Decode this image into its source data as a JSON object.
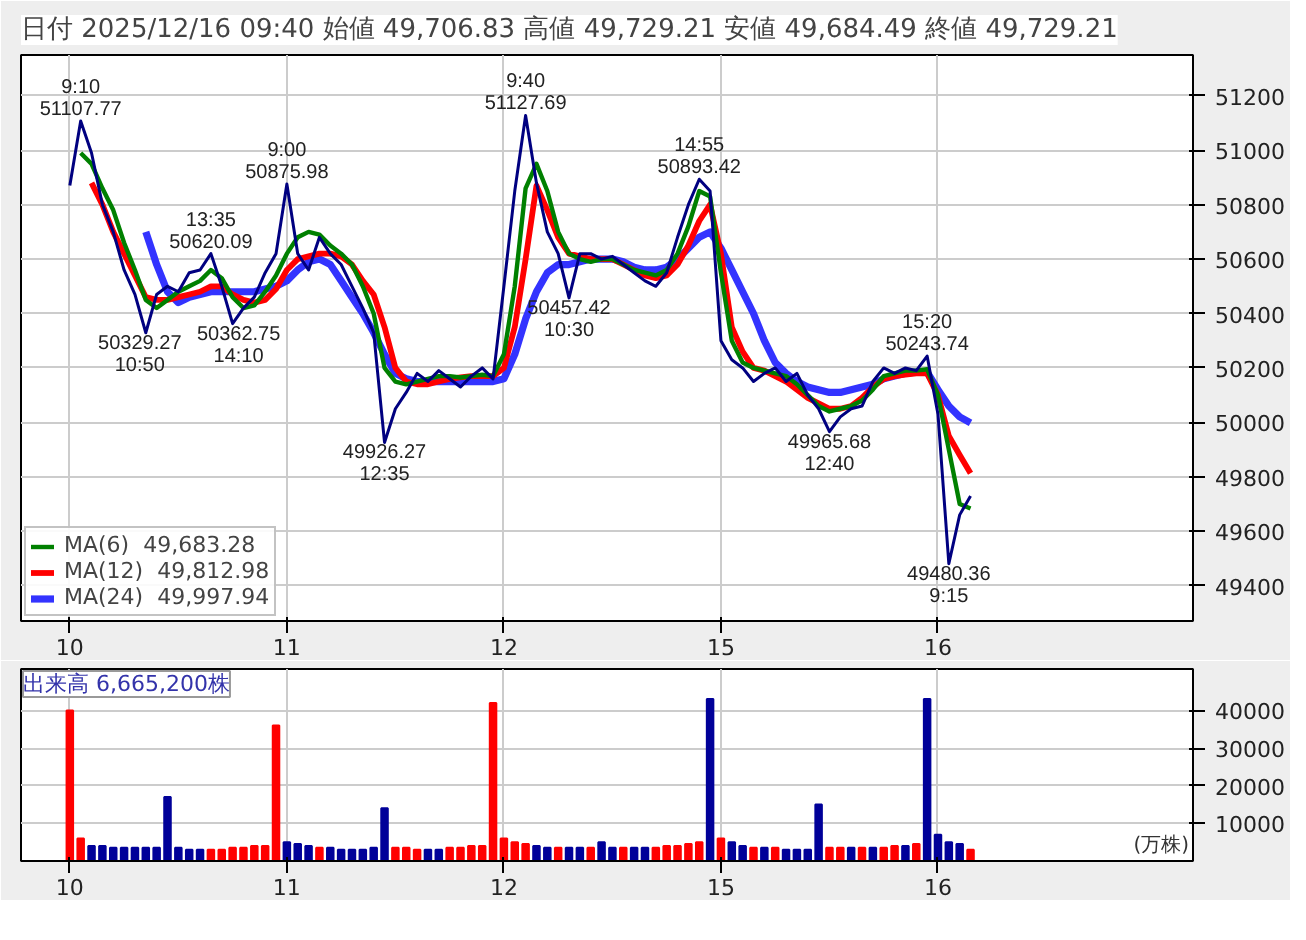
{
  "chart_data": [
    {
      "type": "line",
      "title": "日付 2025/12/16 09:40 始値 49,706.83 高値 49,729.21 安値 49,684.49 終値 49,729.21",
      "categories": [
        "10",
        null,
        null,
        null,
        null,
        null,
        null,
        null,
        null,
        null,
        null,
        null,
        null,
        null,
        null,
        null,
        null,
        null,
        null,
        null,
        "11",
        null,
        null,
        null,
        null,
        null,
        null,
        null,
        null,
        null,
        null,
        null,
        null,
        null,
        null,
        null,
        null,
        null,
        null,
        null,
        "12",
        null,
        null,
        null,
        null,
        null,
        null,
        null,
        null,
        null,
        null,
        null,
        null,
        null,
        null,
        null,
        null,
        null,
        null,
        null,
        "15",
        null,
        null,
        null,
        null,
        null,
        null,
        null,
        null,
        null,
        null,
        null,
        null,
        null,
        null,
        null,
        null,
        null,
        null,
        null,
        "16",
        null,
        null,
        null,
        null,
        null,
        null,
        null,
        null,
        null,
        null,
        null,
        null,
        null,
        null,
        null,
        null,
        null,
        null,
        null,
        null,
        null,
        null,
        null
      ],
      "ylim": [
        49270,
        51350
      ],
      "yticks": [
        49400,
        49600,
        49800,
        50000,
        50200,
        50400,
        50600,
        50800,
        51000,
        51200
      ],
      "grid": true,
      "legend": "bottom left",
      "line_style": "solid",
      "series": [
        {
          "color": "#000080",
          "values": [
            50870,
            51107.77,
            50990,
            50800,
            50700,
            50560,
            50470,
            50329.27,
            50470,
            50500,
            50480,
            50550,
            50560,
            50620.09,
            50500,
            50362.75,
            50420,
            50460,
            50550,
            50620,
            50875.98,
            50620,
            50560,
            50680,
            50620,
            50580,
            50500,
            50420,
            50330,
            49926.27,
            50050,
            50110,
            50180,
            50150,
            50190,
            50160,
            50130,
            50170,
            50200,
            50160,
            50500,
            50850,
            51127.69,
            50880,
            50700,
            50620,
            50457.42,
            50620,
            50620,
            50600,
            50610,
            50580,
            50550,
            50520,
            50500,
            50550,
            50680,
            50800,
            50893.42,
            50850,
            50300,
            50230,
            50200,
            50150,
            50180,
            50200,
            50150,
            50180,
            50100,
            50050,
            49965.68,
            50020,
            50050,
            50060,
            50150,
            50200,
            50180,
            50200,
            50190,
            50243.74,
            50030,
            49480.36,
            49660,
            49729.21,
            null,
            null,
            null,
            null,
            null,
            null,
            null,
            null,
            null,
            null,
            null,
            null,
            null,
            null,
            null,
            null,
            null,
            null,
            null,
            null
          ]
        },
        {
          "name": "MA(6)  49,683.28",
          "color": "#008000",
          "values": [
            null,
            50990,
            50950,
            50860,
            50780,
            50660,
            50560,
            50450,
            50420,
            50450,
            50480,
            50500,
            50520,
            50560,
            50530,
            50460,
            50420,
            50430,
            50480,
            50540,
            50620,
            50680,
            50700,
            50690,
            50650,
            50620,
            50580,
            50500,
            50400,
            50200,
            50150,
            50140,
            50150,
            50160,
            50170,
            50170,
            50165,
            50170,
            50175,
            50170,
            50250,
            50500,
            50860,
            50950,
            50850,
            50700,
            50620,
            50600,
            50590,
            50600,
            50600,
            50580,
            50560,
            50550,
            50540,
            50560,
            50620,
            50720,
            50850,
            50830,
            50550,
            50300,
            50220,
            50200,
            50190,
            50180,
            50170,
            50140,
            50100,
            50060,
            50040,
            50050,
            50060,
            50080,
            50120,
            50170,
            50180,
            50190,
            50190,
            50195,
            50100,
            49900,
            49700,
            49683.28,
            null,
            null,
            null,
            null,
            null,
            null,
            null,
            null,
            null,
            null,
            null,
            null,
            null,
            null,
            null,
            null,
            null,
            null,
            null,
            null
          ]
        },
        {
          "name": "MA(12)  49,812.98",
          "color": "#ff0000",
          "values": [
            null,
            null,
            50880,
            50800,
            50700,
            50620,
            50540,
            50460,
            50450,
            50450,
            50460,
            50470,
            50480,
            50500,
            50500,
            50470,
            50450,
            50440,
            50450,
            50490,
            50560,
            50600,
            50610,
            50620,
            50620,
            50610,
            50580,
            50520,
            50470,
            50350,
            50200,
            50150,
            50140,
            50140,
            50150,
            50160,
            50165,
            50170,
            50170,
            50170,
            50200,
            50350,
            50600,
            50870,
            50780,
            50680,
            50620,
            50610,
            50600,
            50600,
            50600,
            50580,
            50560,
            50540,
            50530,
            50540,
            50580,
            50650,
            50740,
            50800,
            50620,
            50350,
            50260,
            50200,
            50190,
            50170,
            50150,
            50120,
            50090,
            50070,
            50050,
            50050,
            50060,
            50090,
            50130,
            50160,
            50170,
            50175,
            50180,
            50180,
            50100,
            49950,
            49880,
            49812.98,
            null,
            null,
            null,
            null,
            null,
            null,
            null,
            null,
            null,
            null,
            null,
            null,
            null,
            null,
            null,
            null,
            null,
            null,
            null,
            null
          ]
        },
        {
          "name": "MA(24)  49,997.94",
          "color": "#3333ff",
          "values": [
            null,
            null,
            null,
            null,
            null,
            null,
            null,
            50700,
            50580,
            50480,
            50440,
            50460,
            50470,
            50480,
            50480,
            50480,
            50480,
            50480,
            50490,
            50500,
            50520,
            50560,
            50590,
            50600,
            50580,
            50520,
            50460,
            50400,
            50330,
            50250,
            50180,
            50160,
            50150,
            50150,
            50150,
            50150,
            50150,
            50150,
            50150,
            50150,
            50160,
            50250,
            50380,
            50480,
            50550,
            50580,
            50580,
            50590,
            50600,
            50600,
            50600,
            50590,
            50570,
            50560,
            50560,
            50570,
            50600,
            50640,
            50680,
            50700,
            50640,
            50560,
            50480,
            50400,
            50300,
            50220,
            50180,
            50150,
            50130,
            50120,
            50110,
            50110,
            50120,
            50130,
            50140,
            50160,
            50170,
            50180,
            50185,
            50185,
            50120,
            50060,
            50020,
            49997.94,
            null,
            null,
            null,
            null,
            null,
            null,
            null,
            null,
            null,
            null,
            null,
            null,
            null,
            null,
            null,
            null,
            null,
            null,
            null,
            null
          ]
        }
      ],
      "annotations": [
        {
          "text": "9:10\n51107.77",
          "y": 51107.77
        },
        {
          "text": "50329.27\n10:50",
          "y": 50329.27
        },
        {
          "text": "13:35\n50620.09",
          "y": 50620.09
        },
        {
          "text": "50362.75\n14:10",
          "y": 50362.75
        },
        {
          "text": "9:00\n50875.98",
          "y": 50875.98
        },
        {
          "text": "49926.27\n12:35",
          "y": 49926.27
        },
        {
          "text": "9:40\n51127.69",
          "y": 51127.69
        },
        {
          "text": "50457.42\n10:30",
          "y": 50457.42
        },
        {
          "text": "14:55\n50893.42",
          "y": 50893.42
        },
        {
          "text": "49965.68\n12:40",
          "y": 49965.68
        },
        {
          "text": "15:20\n50243.74",
          "y": 50243.74
        },
        {
          "text": "49480.36\n9:15",
          "y": 49480.36
        }
      ]
    },
    {
      "type": "bar",
      "title": "出来高 6,665,200株",
      "annotations": [
        "(万株)"
      ],
      "categories": [
        "10",
        null,
        null,
        null,
        null,
        null,
        null,
        null,
        null,
        null,
        null,
        null,
        null,
        null,
        null,
        null,
        null,
        null,
        null,
        null,
        "11",
        null,
        null,
        null,
        null,
        null,
        null,
        null,
        null,
        null,
        null,
        null,
        null,
        null,
        null,
        null,
        null,
        null,
        null,
        null,
        "12",
        null,
        null,
        null,
        null,
        null,
        null,
        null,
        null,
        null,
        null,
        null,
        null,
        null,
        null,
        null,
        null,
        null,
        null,
        null,
        "15",
        null,
        null,
        null,
        null,
        null,
        null,
        null,
        null,
        null,
        null,
        null,
        null,
        null,
        null,
        null,
        null,
        null,
        null,
        null,
        "16",
        null,
        null,
        null,
        null,
        null,
        null,
        null,
        null,
        null,
        null,
        null,
        null,
        null,
        null,
        null,
        null,
        null,
        null,
        null,
        null,
        null,
        null,
        null
      ],
      "ylim": [
        0,
        51000
      ],
      "yticks": [
        10000,
        20000,
        30000,
        40000
      ],
      "grid": true,
      "values": [
        40000,
        6000,
        4000,
        4000,
        3500,
        3500,
        3500,
        3500,
        3500,
        17000,
        3500,
        3000,
        3000,
        3000,
        3000,
        3500,
        3500,
        4000,
        4000,
        36000,
        5000,
        4500,
        4000,
        3500,
        3500,
        3000,
        3000,
        3000,
        3500,
        14000,
        3500,
        3500,
        3000,
        3000,
        3000,
        3500,
        3500,
        4000,
        4000,
        42000,
        6000,
        5000,
        4500,
        4000,
        3500,
        3500,
        3500,
        3500,
        3500,
        5000,
        3500,
        3500,
        3500,
        3500,
        3500,
        4000,
        4000,
        4500,
        5000,
        43000,
        6000,
        5000,
        4000,
        3500,
        3500,
        3500,
        3000,
        3000,
        3000,
        15000,
        3500,
        3500,
        3500,
        3500,
        3500,
        3500,
        4000,
        4000,
        4500,
        43000,
        7000,
        5000,
        4500,
        3000,
        null,
        null,
        null,
        null,
        null,
        null,
        null,
        null,
        null,
        null,
        null,
        null,
        null,
        null,
        null,
        null,
        null,
        null,
        null,
        null
      ],
      "colors": [
        "#ff0000",
        "#ff0000",
        "#000099",
        "#000099",
        "#000099",
        "#000099",
        "#000099",
        "#000099",
        "#000099",
        "#000099",
        "#000099",
        "#000099",
        "#000099",
        "#ff0000",
        "#ff0000",
        "#ff0000",
        "#ff0000",
        "#ff0000",
        "#ff0000",
        "#ff0000",
        "#000099",
        "#000099",
        "#000099",
        "#ff0000",
        "#000099",
        "#000099",
        "#000099",
        "#000099",
        "#000099",
        "#000099",
        "#ff0000",
        "#ff0000",
        "#ff0000",
        "#000099",
        "#000099",
        "#ff0000",
        "#ff0000",
        "#ff0000",
        "#ff0000",
        "#ff0000",
        "#ff0000",
        "#ff0000",
        "#ff0000",
        "#000099",
        "#000099",
        "#ff0000",
        "#000099",
        "#000099",
        "#ff0000",
        "#000099",
        "#000099",
        "#ff0000",
        "#000099",
        "#000099",
        "#ff0000",
        "#ff0000",
        "#ff0000",
        "#ff0000",
        "#ff0000",
        "#000099",
        "#ff0000",
        "#000099",
        "#000099",
        "#ff0000",
        "#000099",
        "#ff0000",
        "#000099",
        "#000099",
        "#000099",
        "#000099",
        "#ff0000",
        "#ff0000",
        "#000099",
        "#ff0000",
        "#000099",
        "#ff0000",
        "#ff0000",
        "#000099",
        "#ff0000",
        "#000099",
        "#000099",
        "#000099",
        "#000099",
        "#ff0000",
        null,
        null,
        null,
        null,
        null,
        null,
        null,
        null,
        null,
        null,
        null,
        null,
        null,
        null,
        null,
        null,
        null,
        null,
        null,
        null
      ]
    }
  ]
}
